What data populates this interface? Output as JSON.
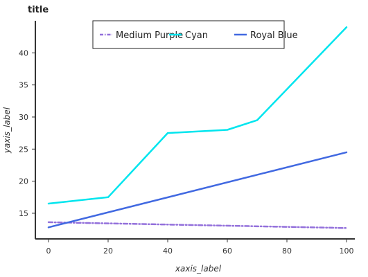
{
  "chart_data": {
    "type": "line",
    "title": "title",
    "xlabel": "xaxis_label",
    "ylabel": "yaxis_label",
    "xlim": [
      0,
      100
    ],
    "ylim": [
      11,
      45
    ],
    "x_ticks": [
      0,
      20,
      40,
      60,
      80,
      100
    ],
    "y_ticks": [
      15,
      20,
      25,
      30,
      35,
      40
    ],
    "grid": false,
    "legend_position": "top-center",
    "series": [
      {
        "name": "Medium Purple",
        "color": "#9370db",
        "dash": true,
        "x": [
          0,
          100
        ],
        "y": [
          13.6,
          12.7
        ]
      },
      {
        "name": "Cyan",
        "color": "#00e5ee",
        "dash": false,
        "x": [
          0,
          20,
          40,
          60,
          70,
          100
        ],
        "y": [
          16.5,
          17.5,
          27.5,
          28.0,
          29.5,
          44.0
        ]
      },
      {
        "name": "Royal Blue",
        "color": "#4169e1",
        "dash": false,
        "x": [
          0,
          100
        ],
        "y": [
          12.8,
          24.5
        ]
      }
    ]
  }
}
